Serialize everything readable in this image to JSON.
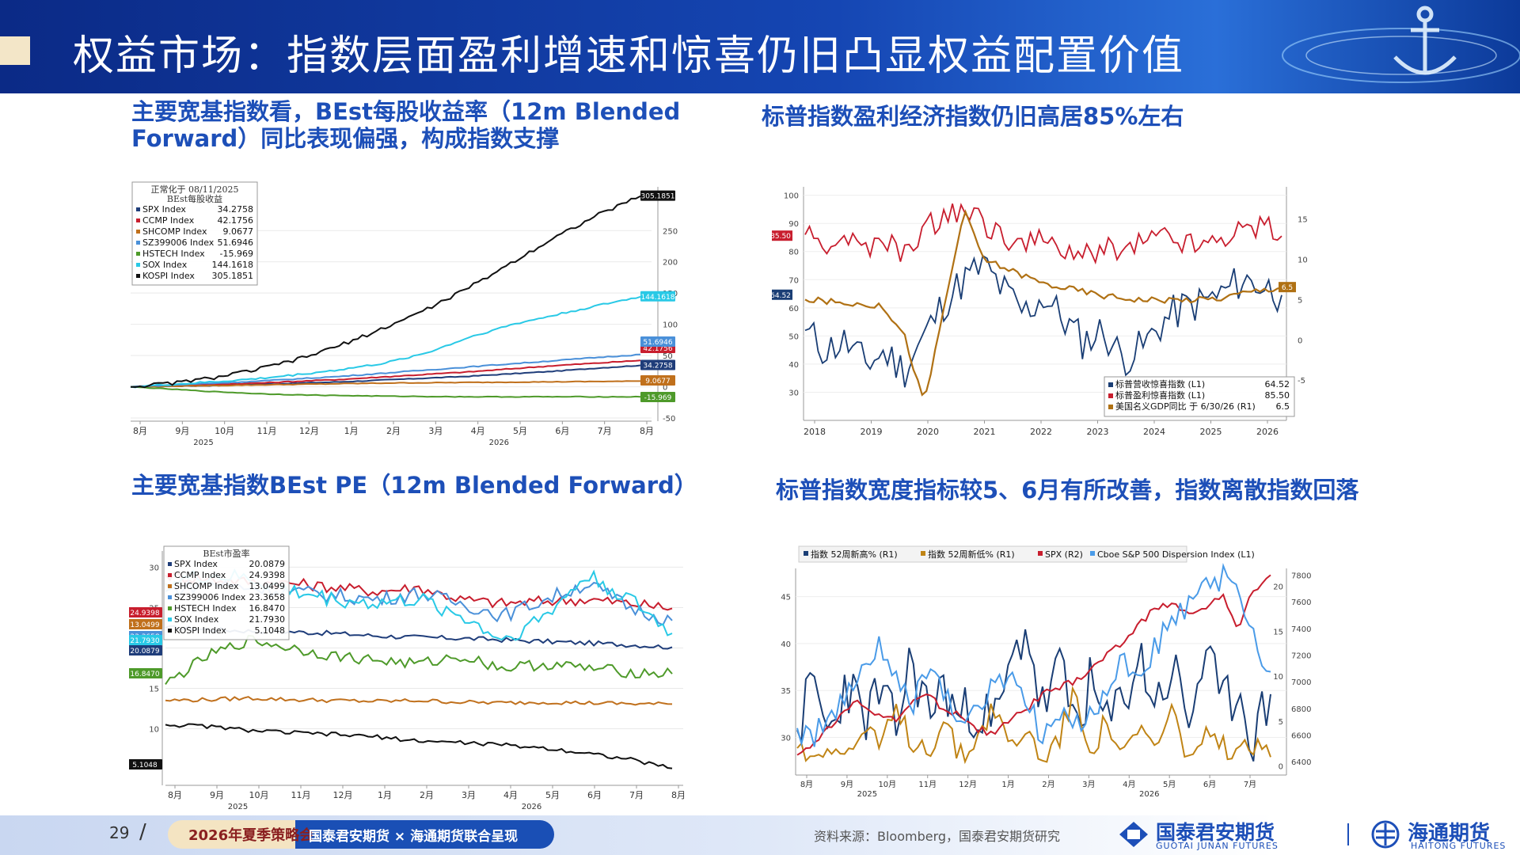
{
  "header": {
    "title": "权益市场：指数层面盈利增速和惊喜仍旧凸显权益配置价值"
  },
  "panels": {
    "tl_title": "主要宽基指数看，BEst每股收益率（12m Blended Forward）同比表现偏强，构成指数支撑",
    "tr_title": "标普指数盈利经济指数仍旧高居85%左右",
    "bl_title": "主要宽基指数BEst PE（12m Blended Forward）",
    "br_title": "标普指数宽度指标较5、6月有所改善，指数离散指数回落"
  },
  "footer": {
    "page": "29",
    "slash": "/",
    "pill_a": "2026年夏季策略会",
    "pill_b": "国泰君安期货 × 海通期货联合呈现",
    "source": "资料来源：Bloomberg，国泰君安期货研究",
    "logo1": "国泰君安期货",
    "logo1_en": "GUOTAI JUNAN FUTURES",
    "logo2": "海通期货",
    "logo2_en": "HAITONG FUTURES"
  },
  "colors": {
    "primary": "#1d4fb8",
    "header": "#1546b3",
    "accent_red": "#c81e2e"
  },
  "chart_data": [
    {
      "id": "tl",
      "type": "line",
      "legend_header": [
        "正常化于 08/11/2025",
        "BEst每股收益"
      ],
      "x_labels": [
        "8月",
        "9月",
        "10月",
        "11月",
        "12月",
        "1月",
        "2月",
        "3月",
        "4月",
        "5月",
        "6月",
        "7月",
        "8月"
      ],
      "year_labels": [
        "2025",
        "2026"
      ],
      "y_ticks": [
        -50,
        0,
        50,
        100,
        150,
        200,
        250
      ],
      "ylim": [
        -55,
        320
      ],
      "series": [
        {
          "name": "SPX Index",
          "last": "34.2758",
          "color": "#1f3d7a",
          "values": [
            0,
            1,
            2,
            4,
            6,
            8,
            11,
            14,
            17,
            21,
            25,
            30,
            34.3
          ]
        },
        {
          "name": "CCMP Index",
          "last": "42.1756",
          "color": "#c81e2e",
          "values": [
            0,
            2,
            4,
            6,
            9,
            12,
            16,
            20,
            24,
            29,
            34,
            38,
            42.2
          ]
        },
        {
          "name": "SHCOMP Index",
          "last": "9.0677",
          "color": "#c0701c",
          "values": [
            0,
            1,
            2,
            3,
            4,
            5,
            6,
            6.5,
            7,
            7.5,
            8,
            8.5,
            9.1
          ]
        },
        {
          "name": "SZ399006 Index",
          "last": "51.6946",
          "color": "#4a90d9",
          "values": [
            0,
            3,
            6,
            9,
            13,
            17,
            22,
            27,
            32,
            37,
            42,
            47,
            51.7
          ]
        },
        {
          "name": "HSTECH Index",
          "last": "-15.969",
          "color": "#4e9a2a",
          "values": [
            0,
            -4,
            -8,
            -11,
            -13,
            -14,
            -15,
            -15.5,
            -16,
            -16,
            -16,
            -16,
            -16
          ]
        },
        {
          "name": "SOX Index",
          "last": "144.1618",
          "color": "#29c9e6",
          "values": [
            0,
            4,
            8,
            13,
            20,
            28,
            38,
            55,
            80,
            100,
            115,
            130,
            144.2
          ]
        },
        {
          "name": "KOSPI Index",
          "last": "305.1851",
          "color": "#111111",
          "values": [
            0,
            6,
            15,
            28,
            45,
            68,
            95,
            125,
            160,
            200,
            240,
            275,
            305.2
          ]
        }
      ]
    },
    {
      "id": "tr",
      "type": "line",
      "x_labels": [
        "2018",
        "2019",
        "2020",
        "2021",
        "2022",
        "2023",
        "2024",
        "2025",
        "2026"
      ],
      "y_left_ticks": [
        30,
        40,
        50,
        60,
        70,
        80,
        90,
        100
      ],
      "y_right_ticks": [
        -5,
        0,
        5,
        10,
        15
      ],
      "ylim_left": [
        20,
        103
      ],
      "ylim_right": [
        -10,
        19
      ],
      "series": [
        {
          "name": "标普营收惊喜指数 (L1)",
          "last": "64.52",
          "color": "#1a3e75",
          "axis": "left",
          "values": [
            52,
            45,
            48,
            40,
            44,
            38,
            50,
            62,
            70,
            75,
            66,
            58,
            64,
            56,
            48,
            52,
            42,
            46,
            55,
            60,
            62,
            65,
            70,
            68,
            64.5
          ]
        },
        {
          "name": "标普盈利惊喜指数 (L1)",
          "last": "85.50",
          "color": "#c81e2e",
          "axis": "left",
          "values": [
            86,
            82,
            85,
            80,
            84,
            78,
            88,
            92,
            95,
            90,
            86,
            82,
            84,
            80,
            78,
            82,
            80,
            84,
            86,
            84,
            82,
            86,
            88,
            90,
            85.5
          ]
        },
        {
          "name": "美国名义GDP同比 于 6/30/26 (R1)",
          "last": "6.5",
          "color": "#b07114",
          "axis": "right",
          "values": [
            5,
            4.8,
            4.5,
            4.5,
            4,
            0.5,
            -8,
            4,
            16,
            10,
            9,
            8,
            7,
            6.5,
            6,
            5.5,
            5.2,
            5,
            5,
            5,
            5,
            5.2,
            5.8,
            6.2,
            6.5
          ]
        }
      ]
    },
    {
      "id": "bl",
      "type": "line",
      "legend_header": [
        "BEst市盈率"
      ],
      "x_labels": [
        "8月",
        "9月",
        "10月",
        "11月",
        "12月",
        "1月",
        "2月",
        "3月",
        "4月",
        "5月",
        "6月",
        "7月",
        "8月"
      ],
      "year_labels": [
        "2025",
        "2026"
      ],
      "y_ticks": [
        10,
        15,
        20,
        25,
        30
      ],
      "ylim": [
        3,
        32
      ],
      "series": [
        {
          "name": "SPX Index",
          "last": "20.0879",
          "color": "#1f3d7a",
          "values": [
            22.5,
            22.3,
            22.1,
            22,
            21.8,
            21.5,
            21.3,
            21.2,
            21,
            20.8,
            20.6,
            20.4,
            20.1
          ]
        },
        {
          "name": "CCMP Index",
          "last": "24.9398",
          "color": "#c81e2e",
          "values": [
            29,
            28.5,
            28.2,
            28,
            27.5,
            27,
            27.5,
            26,
            25.5,
            25.8,
            26,
            25.5,
            24.9
          ]
        },
        {
          "name": "SHCOMP Index",
          "last": "13.0499",
          "color": "#c0701c",
          "values": [
            13.5,
            13.6,
            13.8,
            13.6,
            13.5,
            13.4,
            13.5,
            13.3,
            13.2,
            13.3,
            13.2,
            13.1,
            13.05
          ]
        },
        {
          "name": "SZ399006 Index",
          "last": "23.3658",
          "color": "#4a90d9",
          "values": [
            27,
            28,
            27.5,
            27,
            26.5,
            26,
            26.8,
            25.5,
            24,
            26,
            28,
            25,
            23.4
          ]
        },
        {
          "name": "HSTECH Index",
          "last": "16.8470",
          "color": "#4e9a2a",
          "values": [
            15.5,
            19,
            21,
            20,
            19,
            18.5,
            18,
            19,
            17.5,
            18,
            17.5,
            17,
            16.8
          ]
        },
        {
          "name": "SOX Index",
          "last": "21.7930",
          "color": "#29c9e6",
          "values": [
            28,
            29,
            28.5,
            27,
            26,
            25.5,
            26,
            24,
            21,
            24,
            29,
            26,
            21.8
          ]
        },
        {
          "name": "KOSPI Index",
          "last": "5.1048",
          "color": "#111111",
          "values": [
            10.5,
            10.3,
            9.8,
            9.5,
            9.3,
            9,
            8.5,
            8.3,
            8,
            7.6,
            7,
            6.2,
            5.1
          ]
        }
      ]
    },
    {
      "id": "br",
      "type": "line",
      "x_labels": [
        "8月",
        "9月",
        "10月",
        "11月",
        "12月",
        "1月",
        "2月",
        "3月",
        "4月",
        "5月",
        "6月",
        "7月"
      ],
      "year_labels": [
        "2025",
        "2026"
      ],
      "y_left_ticks": [
        30,
        35,
        40,
        45
      ],
      "y_mid_ticks": [
        0,
        5,
        10,
        15,
        20
      ],
      "y_right_ticks": [
        6400,
        6600,
        6800,
        7000,
        7200,
        7400,
        7600,
        7800
      ],
      "series": [
        {
          "name": "指数 52周新高% (R1)",
          "color": "#1a3e75",
          "axis": "mid",
          "values": [
            4,
            9,
            3,
            10,
            5,
            8,
            4,
            12,
            6,
            9,
            5,
            7,
            4,
            10,
            16,
            6,
            11,
            5,
            9,
            4,
            8,
            12,
            7,
            11,
            5,
            13,
            6,
            9,
            3,
            8
          ]
        },
        {
          "name": "指数 52周新低% (R1)",
          "color": "#c08415",
          "axis": "mid",
          "values": [
            2,
            1,
            3,
            1,
            4,
            2,
            6,
            3,
            2,
            5,
            1,
            3,
            7,
            2,
            4,
            1,
            3,
            8,
            2,
            5,
            1,
            4,
            2,
            6,
            1,
            3,
            2,
            1,
            2,
            1
          ]
        },
        {
          "name": "SPX (R2)",
          "color": "#c81e2e",
          "axis": "right",
          "values": [
            6450,
            6550,
            6650,
            6800,
            6850,
            6750,
            6700,
            6850,
            6900,
            6800,
            6750,
            6650,
            6600,
            6700,
            6800,
            6900,
            6950,
            7000,
            7100,
            7200,
            7300,
            7450,
            7550,
            7600,
            7500,
            7550,
            7650,
            7400,
            7700,
            7800
          ]
        },
        {
          "name": "Cboe S&P 500 Dispersion Index (L1)",
          "color": "#4a9be8",
          "axis": "left",
          "values": [
            31,
            30,
            32,
            34,
            37,
            40,
            36,
            33,
            38,
            35,
            31,
            33,
            35,
            37,
            34,
            30,
            32,
            31,
            33,
            35,
            38,
            36,
            40,
            42,
            44,
            46,
            47,
            45,
            41,
            37
          ]
        }
      ]
    }
  ]
}
